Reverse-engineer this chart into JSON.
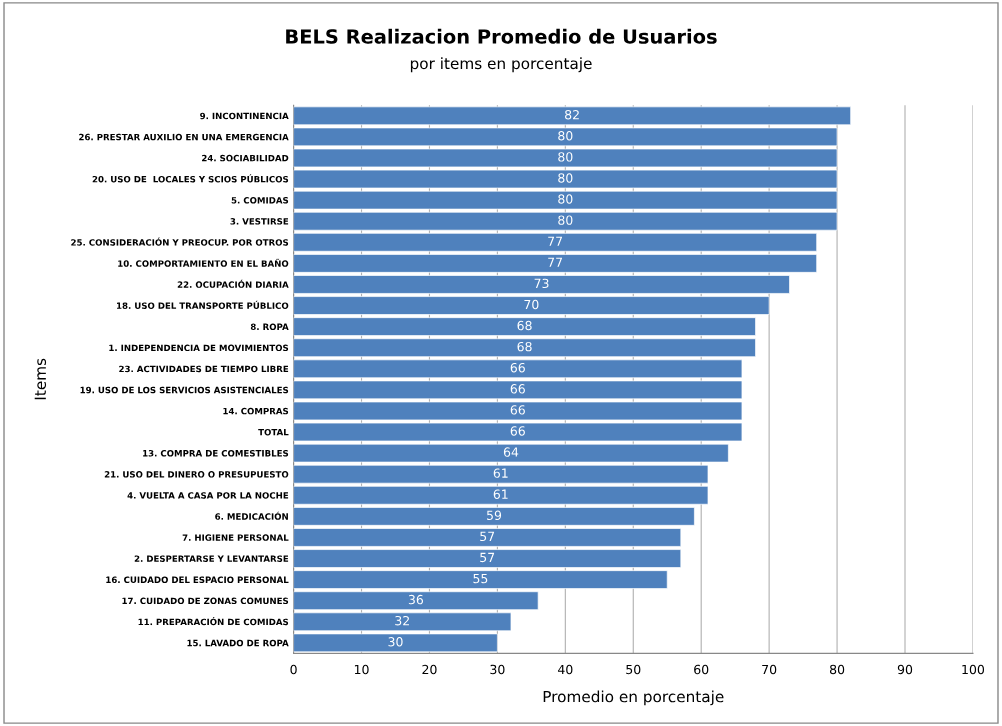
{
  "chart_data": {
    "type": "bar",
    "orientation": "horizontal",
    "title": "BELS Realizacion Promedio de Usuarios",
    "subtitle": "por items en porcentaje",
    "xlabel": "Promedio en porcentaje",
    "ylabel": "Items",
    "categories": [
      "9. INCONTINENCIA",
      "26. PRESTAR AUXILIO EN UNA EMERGENCIA",
      "24. SOCIABILIDAD",
      "20. USO DE  LOCALES Y SCIOS PÚBLICOS",
      "5. COMIDAS",
      "3. VESTIRSE",
      "25. CONSIDERACIÓN Y PREOCUP. POR OTROS",
      "10. COMPORTAMIENTO EN EL BAÑO",
      "22. OCUPACIÓN DIARIA",
      "18. USO DEL TRANSPORTE PÚBLICO",
      "8. ROPA",
      "1. INDEPENDENCIA DE MOVIMIENTOS",
      "23. ACTIVIDADES DE TIEMPO LIBRE",
      "19. USO DE LOS SERVICIOS ASISTENCIALES",
      "14. COMPRAS",
      "TOTAL",
      "13. COMPRA DE COMESTIBLES",
      "21. USO DEL DINERO O PRESUPUESTO",
      "4. VUELTA A CASA POR LA NOCHE",
      "6. MEDICACIÓN",
      "7. HIGIENE PERSONAL",
      "2. DESPERTARSE Y LEVANTARSE",
      "16. CUIDADO DEL ESPACIO PERSONAL",
      "17. CUIDADO DE ZONAS COMUNES",
      "11. PREPARACIÓN DE COMIDAS",
      "15. LAVADO DE ROPA"
    ],
    "values": [
      82,
      80,
      80,
      80,
      80,
      80,
      77,
      77,
      73,
      70,
      68,
      68,
      66,
      66,
      66,
      66,
      64,
      61,
      61,
      59,
      57,
      57,
      55,
      36,
      32,
      30
    ],
    "color": "#4f81bd",
    "data_labels": true,
    "xlim": [
      0,
      100
    ],
    "xticks": [
      0,
      10,
      20,
      30,
      40,
      50,
      60,
      70,
      80,
      90,
      100
    ],
    "grid": "x",
    "legend": false
  }
}
